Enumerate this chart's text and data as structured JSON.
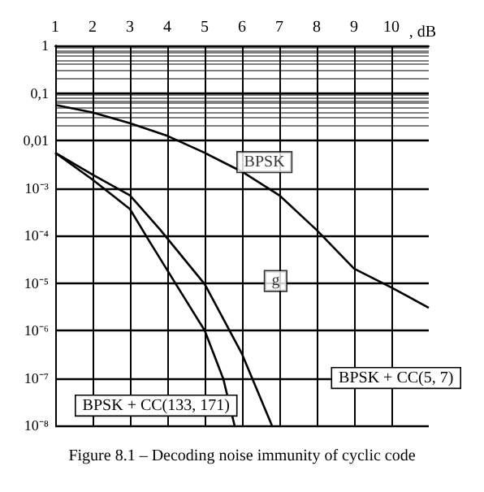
{
  "chart_data": {
    "type": "line",
    "title": "Figure 8.1 – Decoding noise immunity of cyclic code",
    "xlabel": ", dB",
    "log": "y",
    "grid": true,
    "marker": "none",
    "line_style": "solid",
    "xlim": [
      1,
      11
    ],
    "xticks": [
      1,
      2,
      3,
      4,
      5,
      6,
      7,
      8,
      9,
      10
    ],
    "ylim": [
      1e-08,
      1
    ],
    "yticks": [
      {
        "value": 1,
        "label": "1"
      },
      {
        "value": 0.1,
        "label": "0,1"
      },
      {
        "value": 0.01,
        "label": "0,01"
      },
      {
        "value": 0.001,
        "label": "10⁻³"
      },
      {
        "value": 0.0001,
        "label": "10⁻⁴"
      },
      {
        "value": 1e-05,
        "label": "10⁻⁵"
      },
      {
        "value": 1e-06,
        "label": "10⁻⁶"
      },
      {
        "value": 1e-07,
        "label": "10⁻⁷"
      },
      {
        "value": 1e-08,
        "label": "10⁻⁸"
      }
    ],
    "series": [
      {
        "color": "#000000",
        "x": [
          1,
          2,
          3,
          4,
          5,
          6,
          7,
          8,
          9,
          10,
          11
        ],
        "values": [
          0.056,
          0.039,
          0.023,
          0.0125,
          0.0055,
          0.0022,
          0.0007,
          0.00013,
          2e-05,
          8e-06,
          3e-06
        ]
      },
      {
        "color": "#000000",
        "x": [
          1,
          2,
          3,
          3.8,
          5,
          6,
          6.8
        ],
        "values": [
          0.0055,
          0.0019,
          0.0007,
          0.000135,
          9.5e-06,
          3.2e-07,
          1e-08
        ]
      },
      {
        "color": "#000000",
        "x": [
          1,
          2,
          3,
          3.5,
          4.3,
          5,
          5.5,
          5.8
        ],
        "values": [
          0.0055,
          0.0015,
          0.00036,
          8e-05,
          7.7e-06,
          1e-06,
          9.5e-08,
          1e-08
        ]
      }
    ],
    "annotations": [
      {
        "text": "BPSK",
        "x": 6.6,
        "y": 0.0035
      },
      {
        "text": "g",
        "x": 6.9,
        "y": 1.1e-05
      },
      "BPSK + CC(5, 7)",
      "BPSK + CC(133, 171)"
    ]
  }
}
